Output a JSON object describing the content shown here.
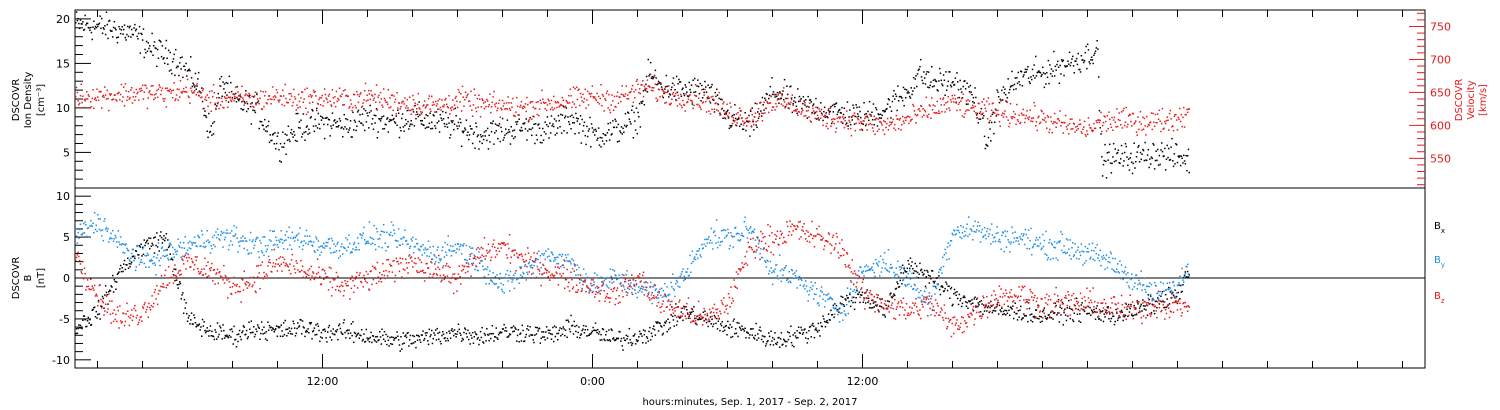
{
  "x_axis_title": "hours:minutes, Sep.  1, 2017 - Sep.  2, 2017",
  "colors": {
    "black": "#000000",
    "red": "#e41a1c",
    "blue": "#1f8fe6"
  },
  "chart_data": [
    {
      "type": "scatter",
      "id": "density_velocity",
      "ylabel_left": [
        "DSCOVR",
        "Ion Density",
        "[cm⁻³]"
      ],
      "ylabel_right": [
        "DSCOVR",
        "Velocity",
        "[km/s]"
      ],
      "ylim_left": [
        1,
        21
      ],
      "yticks_left": [
        5,
        10,
        15,
        20
      ],
      "ylim_right": [
        505,
        775
      ],
      "yticks_right": [
        550,
        600,
        650,
        700,
        750
      ],
      "xlim_hours": [
        1.0,
        61.0
      ],
      "series": [
        {
          "axis": "left",
          "color": "#000000",
          "anchors": [
            [
              1.0,
              19.5
            ],
            [
              2.5,
              19.0
            ],
            [
              3.5,
              18.5
            ],
            [
              4.5,
              16.5
            ],
            [
              5.5,
              15.5
            ],
            [
              6.5,
              12.5
            ],
            [
              7.0,
              7.0
            ],
            [
              7.5,
              13
            ],
            [
              8,
              11
            ],
            [
              9,
              10
            ],
            [
              10,
              6
            ],
            [
              11,
              8
            ],
            [
              12,
              8.5
            ],
            [
              13,
              8
            ],
            [
              14,
              9
            ],
            [
              15,
              8.5
            ],
            [
              16,
              9
            ],
            [
              17,
              8.5
            ],
            [
              18,
              8
            ],
            [
              19,
              7
            ],
            [
              20,
              7.5
            ],
            [
              21,
              8
            ],
            [
              22,
              7.5
            ],
            [
              23,
              9
            ],
            [
              24,
              7
            ],
            [
              25,
              7.5
            ],
            [
              26,
              9
            ],
            [
              26.5,
              14
            ],
            [
              27,
              12.5
            ],
            [
              28,
              12
            ],
            [
              29,
              12
            ],
            [
              30,
              9
            ],
            [
              31,
              8
            ],
            [
              32,
              12
            ],
            [
              33,
              10.5
            ],
            [
              34,
              10
            ],
            [
              35,
              9.5
            ],
            [
              36,
              9
            ],
            [
              37,
              10
            ],
            [
              38,
              12
            ],
            [
              38.5,
              14
            ],
            [
              39,
              13
            ],
            [
              40,
              13
            ],
            [
              41,
              11
            ],
            [
              41.5,
              6
            ],
            [
              42,
              11
            ],
            [
              43,
              13.5
            ],
            [
              44,
              14
            ],
            [
              45,
              15
            ],
            [
              46,
              16
            ],
            [
              46.4,
              17
            ],
            [
              46.6,
              4
            ],
            [
              47,
              4.5
            ],
            [
              48,
              4.5
            ],
            [
              49,
              5
            ],
            [
              50,
              4.5
            ],
            [
              50.5,
              4.2
            ]
          ],
          "spread": 1.6
        },
        {
          "axis": "right",
          "color": "#e41a1c",
          "anchors": [
            [
              1.0,
              645
            ],
            [
              2,
              645
            ],
            [
              3,
              648
            ],
            [
              4,
              650
            ],
            [
              5,
              648
            ],
            [
              6,
              655
            ],
            [
              7,
              640
            ],
            [
              8,
              642
            ],
            [
              9,
              640
            ],
            [
              10,
              645
            ],
            [
              11,
              640
            ],
            [
              12,
              642
            ],
            [
              13,
              640
            ],
            [
              14,
              645
            ],
            [
              15,
              638
            ],
            [
              16,
              635
            ],
            [
              17,
              630
            ],
            [
              18,
              640
            ],
            [
              19,
              632
            ],
            [
              20,
              630
            ],
            [
              21,
              628
            ],
            [
              22,
              635
            ],
            [
              23,
              638
            ],
            [
              24,
              645
            ],
            [
              25,
              640
            ],
            [
              26,
              655
            ],
            [
              26.5,
              660
            ],
            [
              27,
              650
            ],
            [
              28,
              645
            ],
            [
              29,
              640
            ],
            [
              30,
              620
            ],
            [
              31,
              612
            ],
            [
              32,
              640
            ],
            [
              33,
              630
            ],
            [
              34,
              615
            ],
            [
              35,
              610
            ],
            [
              36,
              605
            ],
            [
              37,
              600
            ],
            [
              38,
              610
            ],
            [
              39,
              625
            ],
            [
              40,
              635
            ],
            [
              41,
              625
            ],
            [
              42,
              620
            ],
            [
              43,
              618
            ],
            [
              44,
              610
            ],
            [
              45,
              600
            ],
            [
              46,
              595
            ],
            [
              46.5,
              605
            ],
            [
              47,
              608
            ],
            [
              48,
              608
            ],
            [
              49,
              607
            ],
            [
              50,
              612
            ],
            [
              50.5,
              622
            ]
          ],
          "spread": 18
        }
      ]
    },
    {
      "type": "scatter",
      "id": "magnetic_field",
      "ylabel_left": [
        "DSCOVR",
        "B",
        "[nT]"
      ],
      "ylim_left": [
        -11,
        11
      ],
      "yticks_left": [
        -10,
        -5,
        0,
        5,
        10
      ],
      "xlim_hours": [
        1.0,
        61.0
      ],
      "zero_line": true,
      "xticks_labeled": [
        {
          "hour": 12,
          "label": "12:00"
        },
        {
          "hour": 24,
          "label": "0:00"
        },
        {
          "hour": 36,
          "label": "12:00"
        }
      ],
      "legend": [
        {
          "label": "B",
          "sub": "x",
          "color": "#000000"
        },
        {
          "label": "B",
          "sub": "y",
          "color": "#1f8fe6"
        },
        {
          "label": "B",
          "sub": "z",
          "color": "#e41a1c"
        }
      ],
      "series": [
        {
          "name": "Bx",
          "color": "#000000",
          "anchors": [
            [
              1.0,
              -6
            ],
            [
              2,
              -4
            ],
            [
              3,
              1
            ],
            [
              4,
              4
            ],
            [
              5,
              5
            ],
            [
              6,
              -5
            ],
            [
              7,
              -6.5
            ],
            [
              8,
              -7
            ],
            [
              9,
              -6
            ],
            [
              10,
              -6.5
            ],
            [
              11,
              -6
            ],
            [
              12,
              -6.5
            ],
            [
              13,
              -6.5
            ],
            [
              14,
              -7
            ],
            [
              15,
              -7.5
            ],
            [
              16,
              -7.5
            ],
            [
              17,
              -7
            ],
            [
              18,
              -6.5
            ],
            [
              19,
              -7
            ],
            [
              20,
              -6.5
            ],
            [
              21,
              -6.5
            ],
            [
              22,
              -7
            ],
            [
              23,
              -6
            ],
            [
              24,
              -6.5
            ],
            [
              25,
              -7.5
            ],
            [
              26,
              -7
            ],
            [
              27,
              -6
            ],
            [
              28,
              -4
            ],
            [
              29,
              -5
            ],
            [
              30,
              -6
            ],
            [
              31,
              -6.5
            ],
            [
              32,
              -7.5
            ],
            [
              33,
              -7
            ],
            [
              34,
              -6
            ],
            [
              35,
              -3
            ],
            [
              36,
              -2
            ],
            [
              37,
              -4
            ],
            [
              38,
              2
            ],
            [
              39,
              0
            ],
            [
              40,
              -2
            ],
            [
              41,
              -3
            ],
            [
              42,
              -4
            ],
            [
              43,
              -4
            ],
            [
              44,
              -4.5
            ],
            [
              45,
              -4
            ],
            [
              46,
              -4
            ],
            [
              47,
              -4.5
            ],
            [
              48,
              -4
            ],
            [
              49,
              -3
            ],
            [
              50,
              -2
            ],
            [
              50.5,
              1
            ]
          ],
          "spread": 1.2
        },
        {
          "name": "By",
          "color": "#1f8fe6",
          "anchors": [
            [
              1.0,
              5
            ],
            [
              2,
              7
            ],
            [
              3,
              4
            ],
            [
              4,
              2
            ],
            [
              5,
              3
            ],
            [
              6,
              4
            ],
            [
              7,
              5
            ],
            [
              8,
              5
            ],
            [
              9,
              4
            ],
            [
              10,
              4.5
            ],
            [
              11,
              5
            ],
            [
              12,
              4
            ],
            [
              13,
              4
            ],
            [
              14,
              5
            ],
            [
              15,
              5
            ],
            [
              16,
              4
            ],
            [
              17,
              3
            ],
            [
              18,
              4
            ],
            [
              19,
              2
            ],
            [
              20,
              -1
            ],
            [
              21,
              1
            ],
            [
              22,
              3
            ],
            [
              23,
              2
            ],
            [
              24,
              -1
            ],
            [
              25,
              0
            ],
            [
              26,
              -1
            ],
            [
              27,
              -2
            ],
            [
              28,
              0
            ],
            [
              29,
              5
            ],
            [
              30,
              5
            ],
            [
              31,
              6
            ],
            [
              32,
              1
            ],
            [
              33,
              0
            ],
            [
              34,
              -2
            ],
            [
              35,
              -4
            ],
            [
              36,
              1
            ],
            [
              37,
              2
            ],
            [
              38,
              0
            ],
            [
              39,
              -3
            ],
            [
              40,
              6
            ],
            [
              41,
              6
            ],
            [
              42,
              5
            ],
            [
              43,
              5
            ],
            [
              44,
              4
            ],
            [
              45,
              4
            ],
            [
              46,
              3
            ],
            [
              47,
              2
            ],
            [
              48,
              0
            ],
            [
              49,
              -2
            ],
            [
              50,
              -1
            ],
            [
              50.5,
              2
            ]
          ],
          "spread": 1.5
        },
        {
          "name": "Bz",
          "color": "#e41a1c",
          "anchors": [
            [
              1.0,
              3
            ],
            [
              2,
              -2
            ],
            [
              3,
              -5
            ],
            [
              4,
              -4
            ],
            [
              5,
              0
            ],
            [
              6,
              2
            ],
            [
              7,
              1
            ],
            [
              8,
              -1
            ],
            [
              9,
              0
            ],
            [
              10,
              2
            ],
            [
              11,
              1
            ],
            [
              12,
              0
            ],
            [
              13,
              -1
            ],
            [
              14,
              0
            ],
            [
              15,
              1
            ],
            [
              16,
              2
            ],
            [
              17,
              1
            ],
            [
              18,
              0
            ],
            [
              19,
              3
            ],
            [
              20,
              4
            ],
            [
              21,
              2
            ],
            [
              22,
              1
            ],
            [
              23,
              0
            ],
            [
              24,
              -1
            ],
            [
              25,
              -2
            ],
            [
              26,
              0
            ],
            [
              27,
              -3
            ],
            [
              28,
              -4
            ],
            [
              29,
              -5
            ],
            [
              30,
              -3
            ],
            [
              31,
              4
            ],
            [
              32,
              5
            ],
            [
              33,
              6
            ],
            [
              34,
              5
            ],
            [
              35,
              4
            ],
            [
              36,
              -2
            ],
            [
              37,
              -3
            ],
            [
              38,
              -4
            ],
            [
              39,
              -3
            ],
            [
              40,
              -6
            ],
            [
              41,
              -4
            ],
            [
              42,
              -2
            ],
            [
              43,
              -2
            ],
            [
              44,
              -3
            ],
            [
              45,
              -3
            ],
            [
              46,
              -3
            ],
            [
              47,
              -3.5
            ],
            [
              48,
              -4
            ],
            [
              49,
              -3
            ],
            [
              50,
              -3.5
            ],
            [
              50.5,
              -3
            ]
          ],
          "spread": 1.6
        }
      ]
    }
  ]
}
